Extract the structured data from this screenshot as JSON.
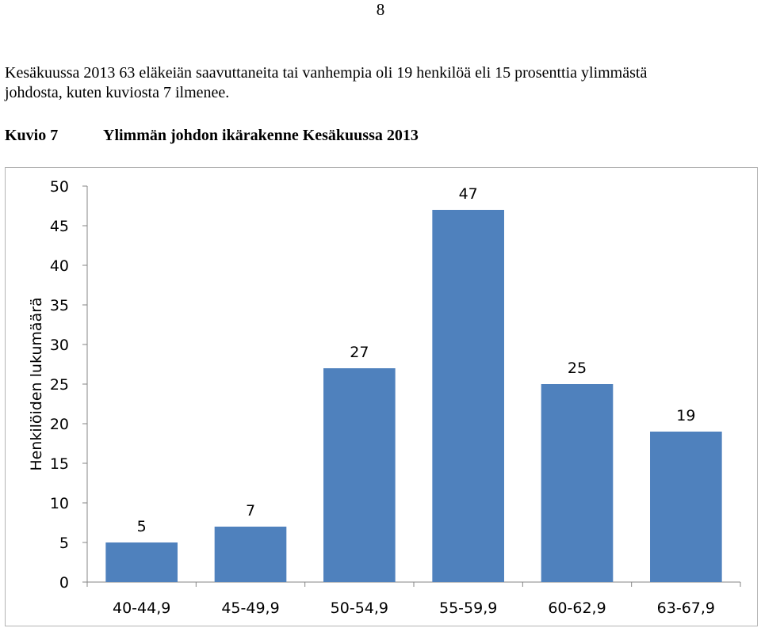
{
  "page": {
    "number": "8"
  },
  "paragraph": {
    "line1": "Kesäkuussa 2013 63 eläkeiän saavuttaneita tai  vanhempia oli 19 henkilöä eli 15 prosenttia ylimmästä",
    "line2": "johdosta, kuten kuviosta 7 ilmenee."
  },
  "caption": {
    "label": "Kuvio 7",
    "title": "Ylimmän johdon ikärakenne Kesäkuussa 2013"
  },
  "chart_data": {
    "type": "bar",
    "categories": [
      "40-44,9",
      "45-49,9",
      "50-54,9",
      "55-59,9",
      "60-62,9",
      "63-67,9"
    ],
    "values": [
      5,
      7,
      27,
      47,
      25,
      19
    ],
    "data_labels": [
      "5",
      "7",
      "27",
      "47",
      "25",
      "19"
    ],
    "ylabel": "Henkilöiden lukumäärä",
    "xlabel": "",
    "ylim": [
      0,
      50
    ],
    "yticks": [
      "0",
      "5",
      "10",
      "15",
      "20",
      "25",
      "30",
      "35",
      "40",
      "45",
      "50"
    ],
    "grid": false,
    "legend": "none",
    "bar_color": "#4f81bd",
    "axis_color": "#868686"
  }
}
